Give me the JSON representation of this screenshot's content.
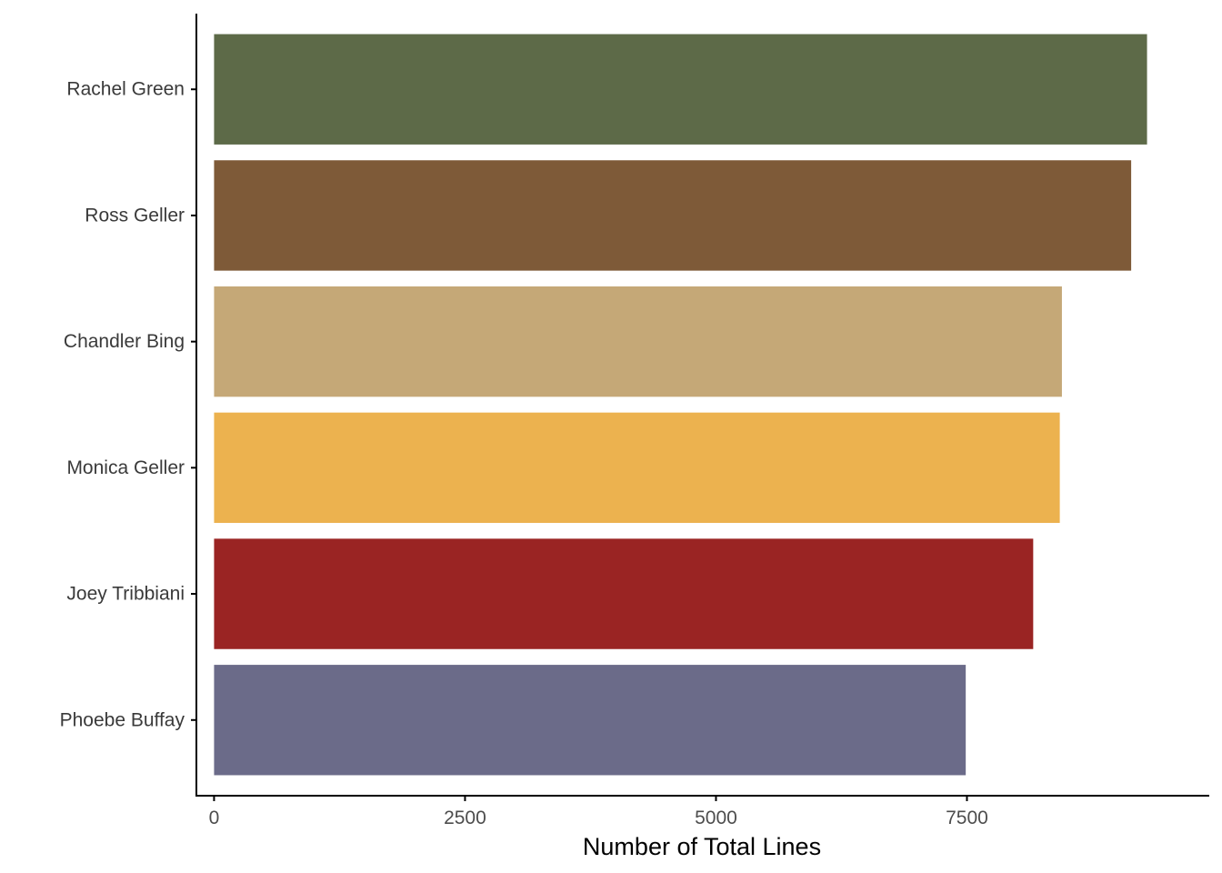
{
  "chart_data": {
    "type": "bar",
    "orientation": "horizontal",
    "title": "",
    "xlabel": "Number of Total Lines",
    "ylabel": "",
    "xlim": [
      -176,
      9914
    ],
    "xticks": [
      0,
      2500,
      5000,
      7500
    ],
    "xtick_labels": [
      "0",
      "2500",
      "5000",
      "7500"
    ],
    "grid": false,
    "legend": "none",
    "categories": [
      "Rachel Green",
      "Ross Geller",
      "Chandler Bing",
      "Monica Geller",
      "Joey Tribbiani",
      "Phoebe Buffay"
    ],
    "values": [
      9294,
      9136,
      8446,
      8425,
      8160,
      7488
    ],
    "colors": [
      "#5d6a48",
      "#7e5a38",
      "#c5a877",
      "#ecb24f",
      "#9a2423",
      "#6b6b89"
    ]
  }
}
